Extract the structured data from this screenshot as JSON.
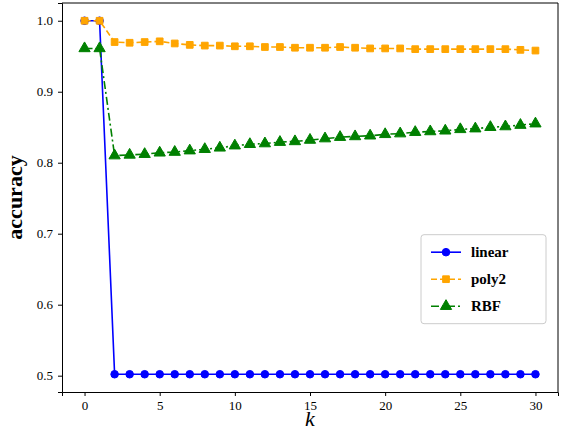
{
  "chart_data": {
    "type": "line",
    "x_label": "k",
    "y_label": "accuracy",
    "x": [
      0,
      1,
      2,
      3,
      4,
      5,
      6,
      7,
      8,
      9,
      10,
      11,
      12,
      13,
      14,
      15,
      16,
      17,
      18,
      19,
      20,
      21,
      22,
      23,
      24,
      25,
      26,
      27,
      28,
      29,
      30
    ],
    "series": [
      {
        "name": "linear",
        "color": "#0000ff",
        "marker": "circle",
        "line_style": "solid",
        "values": [
          1.0,
          1.0,
          0.502,
          0.502,
          0.502,
          0.502,
          0.502,
          0.502,
          0.502,
          0.502,
          0.502,
          0.502,
          0.502,
          0.502,
          0.502,
          0.502,
          0.502,
          0.502,
          0.502,
          0.502,
          0.502,
          0.502,
          0.502,
          0.502,
          0.502,
          0.502,
          0.502,
          0.502,
          0.502,
          0.502,
          0.502
        ]
      },
      {
        "name": "poly2",
        "color": "#ffa500",
        "marker": "square",
        "line_style": "dashed",
        "values": [
          1.0,
          1.0,
          0.97,
          0.969,
          0.97,
          0.971,
          0.968,
          0.966,
          0.965,
          0.965,
          0.964,
          0.964,
          0.963,
          0.963,
          0.962,
          0.962,
          0.962,
          0.963,
          0.962,
          0.961,
          0.961,
          0.961,
          0.96,
          0.96,
          0.96,
          0.96,
          0.96,
          0.96,
          0.96,
          0.959,
          0.958
        ]
      },
      {
        "name": "RBF",
        "color": "#008000",
        "marker": "triangle",
        "line_style": "dashdot",
        "values": [
          0.961,
          0.961,
          0.81,
          0.811,
          0.812,
          0.814,
          0.815,
          0.817,
          0.819,
          0.821,
          0.824,
          0.826,
          0.827,
          0.829,
          0.83,
          0.832,
          0.834,
          0.836,
          0.837,
          0.838,
          0.84,
          0.841,
          0.843,
          0.844,
          0.845,
          0.847,
          0.848,
          0.85,
          0.851,
          0.853,
          0.855
        ]
      }
    ],
    "xlim": [
      -1.5,
      31.5
    ],
    "ylim": [
      0.477,
      1.025
    ],
    "xticks": [
      0,
      5,
      10,
      15,
      20,
      25,
      30
    ],
    "yticks": [
      0.5,
      0.6,
      0.7,
      0.8,
      0.9,
      {
        "value": 1,
        "label": "1.0"
      }
    ],
    "legend": "center right",
    "grid": false
  }
}
